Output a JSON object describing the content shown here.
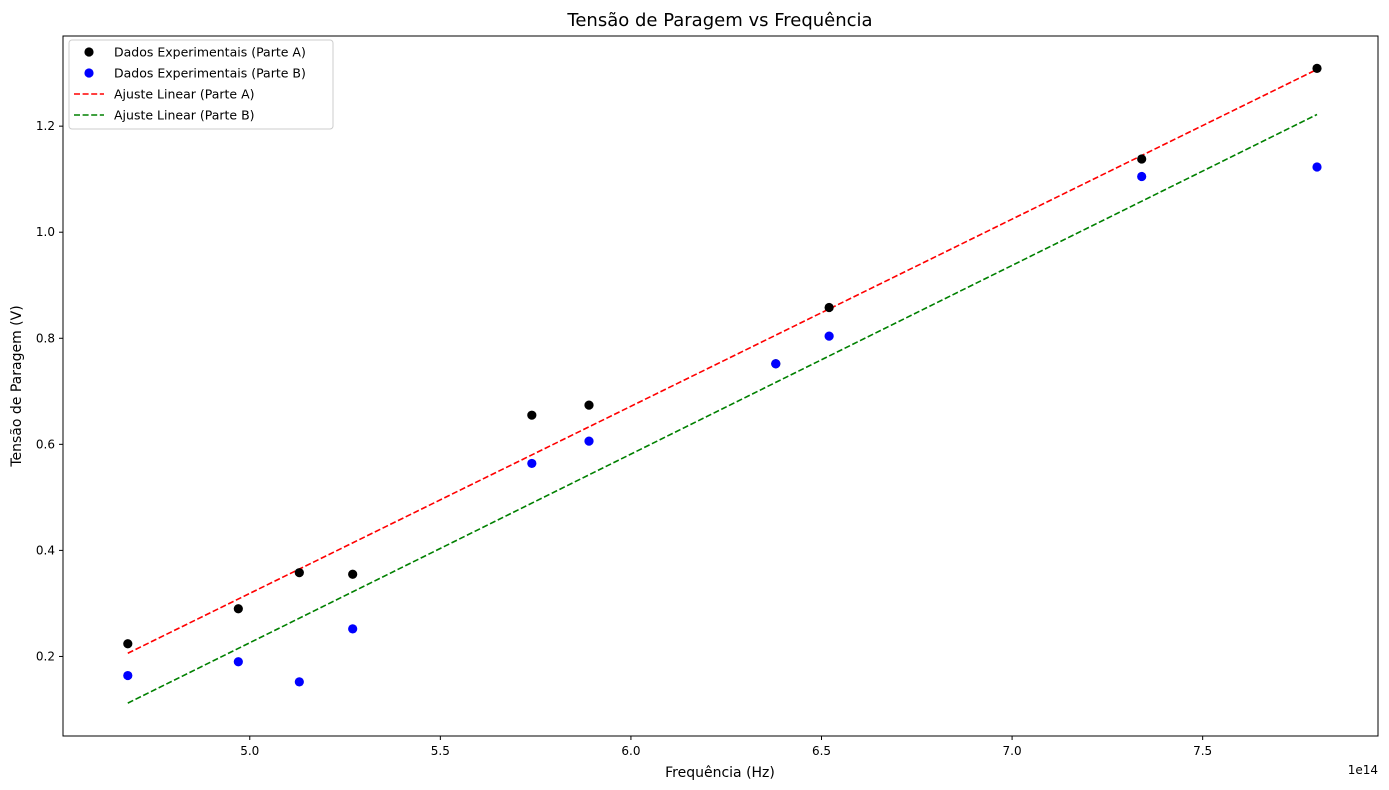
{
  "chart_data": {
    "type": "scatter",
    "title": "Tensão de Paragem vs Frequência",
    "xlabel": "Frequência (Hz)",
    "ylabel": "Tensão de Paragem (V)",
    "x_offset_label": "1e14",
    "x_scale": 100000000000000.0,
    "xlim": [
      4.51,
      7.96
    ],
    "ylim": [
      0.05,
      1.37
    ],
    "x_ticks": [
      5.0,
      5.5,
      6.0,
      6.5,
      7.0,
      7.5
    ],
    "x_tick_labels": [
      "5.0",
      "5.5",
      "6.0",
      "6.5",
      "7.0",
      "7.5"
    ],
    "y_ticks": [
      0.2,
      0.4,
      0.6,
      0.8,
      1.0,
      1.2
    ],
    "y_tick_labels": [
      "0.2",
      "0.4",
      "0.6",
      "0.8",
      "1.0",
      "1.2"
    ],
    "grid": false,
    "legend_position": "top-left",
    "series": [
      {
        "name": "Dados Experimentais (Parte A)",
        "kind": "scatter",
        "color": "#000000",
        "x": [
          4.68,
          4.97,
          5.13,
          5.27,
          5.74,
          5.89,
          6.38,
          6.52,
          7.34,
          7.8
        ],
        "y": [
          0.224,
          0.29,
          0.358,
          0.355,
          0.655,
          0.674,
          0.752,
          0.858,
          1.138,
          1.309
        ]
      },
      {
        "name": "Dados Experimentais (Parte B)",
        "kind": "scatter",
        "color": "#0000ff",
        "x": [
          4.68,
          4.97,
          5.13,
          5.27,
          5.74,
          5.89,
          6.38,
          6.52,
          7.34,
          7.8
        ],
        "y": [
          0.164,
          0.19,
          0.152,
          0.252,
          0.564,
          0.606,
          0.752,
          0.804,
          1.105,
          1.123
        ]
      },
      {
        "name": "Ajuste Linear (Parte A)",
        "kind": "line",
        "style": "dashed",
        "color": "#ff0000",
        "x": [
          4.68,
          7.8
        ],
        "y": [
          0.206,
          1.307
        ]
      },
      {
        "name": "Ajuste Linear (Parte B)",
        "kind": "line",
        "style": "dashed",
        "color": "#008000",
        "x": [
          4.68,
          7.8
        ],
        "y": [
          0.112,
          1.222
        ]
      }
    ]
  }
}
